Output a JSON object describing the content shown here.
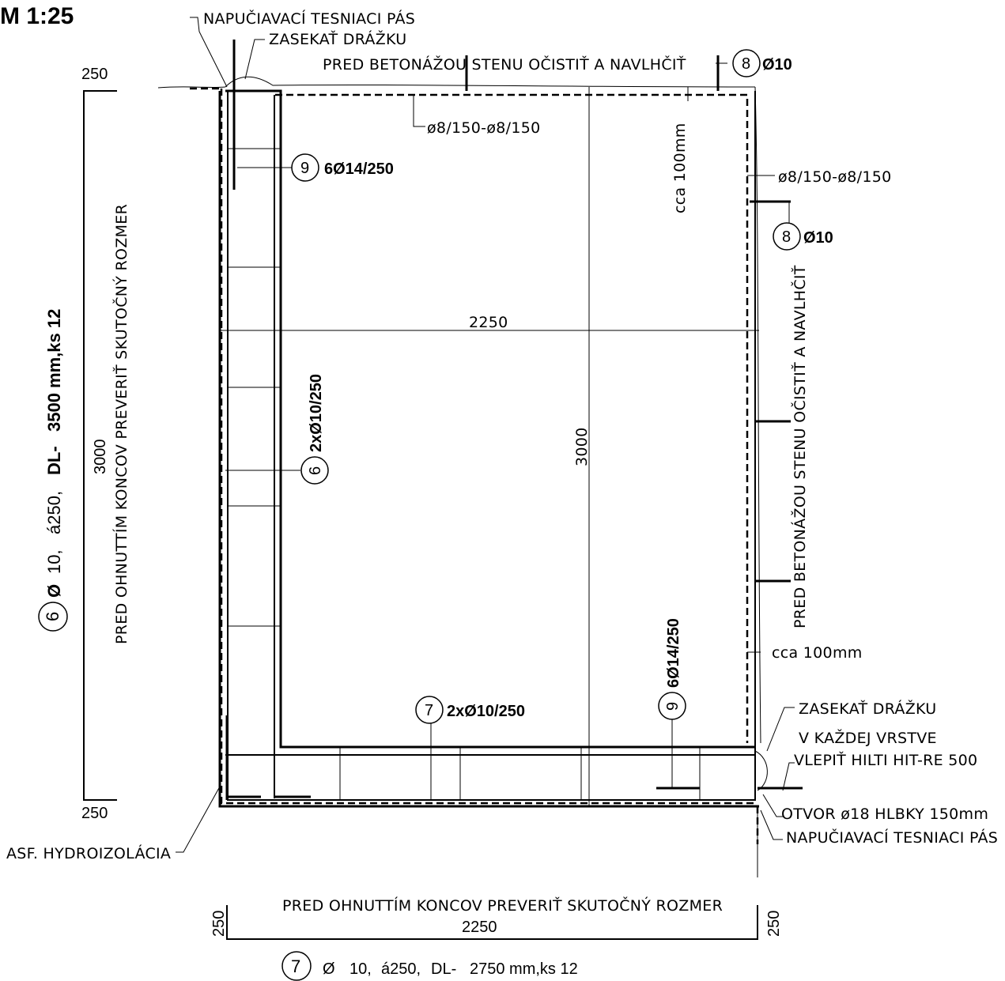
{
  "scale": "M 1:25",
  "labels": {
    "napuc_top": "NAPUČIAVACÍ TESNIACI PÁS",
    "zasekat_top": "ZASEKAŤ DRÁŽKU",
    "pred_beton_top": "PRED BETONÁŽOU STENU OČISTIŤ A NAVLHČIŤ",
    "pred_beton_right": "PRED BETONÁŽOU STENU OČISTIŤ A NAVLHČIŤ",
    "bars_top": "ø8/150-ø8/150",
    "bars_right": "ø8/150-ø8/150",
    "cca_top": "cca 100mm",
    "cca_right": "cca 100mm",
    "zasekat_right_1": "ZASEKAŤ DRÁŽKU",
    "zasekat_right_2": "V KAŽDEJ VRSTVE",
    "hilti": "VLEPIŤ HILTI HIT-RE 500",
    "otvor": "OTVOR ø18 HLBKY 150mm",
    "napuc_right": "NAPUČIAVACÍ TESNIACI PÁS",
    "asf": "ASF. HYDROIZOLÁCIA",
    "pred_ohnut_left": "PRED OHNUTTÍM KONCOV PREVERIŤ SKUTOČNÝ ROZMER",
    "pred_ohnut_bottom": "PRED OHNUTTÍM KONCOV PREVERIŤ SKUTOČNÝ ROZMER"
  },
  "dimensions": {
    "width_inner": "2250",
    "height_inner": "3000",
    "left_top": "250",
    "left_bottom": "250",
    "left_height": "3000",
    "bottom_length": "2250",
    "bottom_left": "250",
    "bottom_right": "250"
  },
  "marks": {
    "m8": "8",
    "m8_top_label": "Ø10",
    "m8_right_label": "Ø10",
    "m9": "9",
    "m9_left_label": "6Ø14/250",
    "m9_bottom_label": "6Ø14/250",
    "m6": "6",
    "m6_label": "2xØ10/250",
    "m7": "7",
    "m7_label": "2xØ10/250"
  },
  "bar_schedule": {
    "bar6": {
      "mark": "6",
      "diameter": "Ø",
      "spec_a": "10,",
      "spacing": "á250,",
      "dl": "DL-",
      "length": "3500 mm,ks 12"
    },
    "bar7": {
      "mark": "7",
      "diameter": "Ø",
      "spec_a": "10,",
      "spacing": "á250,",
      "dl": "DL-",
      "length": "2750 mm,ks 12"
    }
  }
}
